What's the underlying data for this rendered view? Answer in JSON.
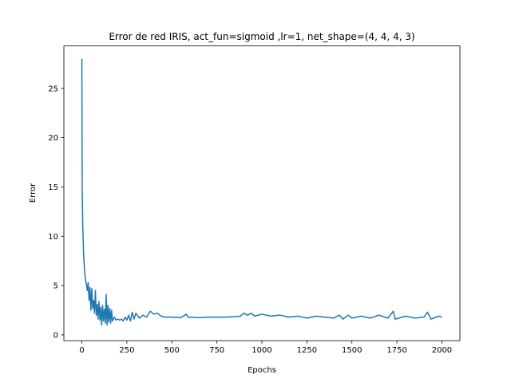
{
  "chart_data": {
    "type": "line",
    "title": "Error de red IRIS, act_fun=sigmoid ,lr=1, net_shape=(4, 4, 4, 3)",
    "xlabel": "Epochs",
    "ylabel": "Error",
    "x": [
      0,
      1,
      2,
      5,
      10,
      15,
      20,
      25,
      30,
      35,
      40,
      45,
      50,
      55,
      60,
      65,
      70,
      75,
      80,
      85,
      90,
      95,
      100,
      105,
      110,
      115,
      120,
      125,
      130,
      135,
      140,
      145,
      150,
      155,
      160,
      165,
      170,
      180,
      190,
      200,
      210,
      220,
      230,
      240,
      250,
      260,
      270,
      280,
      290,
      300,
      320,
      340,
      360,
      380,
      400,
      420,
      440,
      460,
      500,
      550,
      580,
      590,
      650,
      700,
      800,
      850,
      880,
      900,
      920,
      940,
      960,
      1000,
      1050,
      1100,
      1150,
      1200,
      1250,
      1300,
      1350,
      1400,
      1430,
      1450,
      1480,
      1500,
      1550,
      1600,
      1650,
      1700,
      1730,
      1740,
      1800,
      1850,
      1900,
      1920,
      1940,
      1980,
      2000
    ],
    "series": [
      {
        "name": "Error",
        "color": "#1f77b4",
        "values": [
          28,
          20,
          14.5,
          11,
          8,
          6.5,
          5.5,
          5.2,
          4.5,
          5.3,
          3.5,
          4.8,
          2.5,
          4.7,
          2.7,
          3.5,
          2.2,
          4.5,
          2.0,
          3.1,
          1.6,
          3.4,
          1.5,
          2.8,
          1.0,
          3.0,
          1.4,
          2.6,
          1.2,
          4.1,
          1.0,
          3.0,
          1.3,
          2.7,
          1.2,
          2.5,
          1.4,
          1.8,
          1.5,
          1.6,
          1.5,
          1.6,
          1.4,
          1.8,
          1.5,
          2.0,
          1.4,
          2.3,
          1.6,
          2.2,
          1.7,
          2.0,
          1.8,
          2.4,
          2.1,
          2.2,
          1.9,
          1.8,
          1.8,
          1.75,
          2.1,
          1.8,
          1.75,
          1.8,
          1.8,
          1.85,
          1.9,
          2.2,
          2.0,
          2.2,
          1.9,
          2.1,
          1.9,
          2.0,
          1.8,
          1.9,
          1.7,
          1.9,
          1.8,
          1.7,
          2.0,
          1.6,
          2.0,
          1.7,
          1.9,
          1.7,
          2.0,
          1.7,
          2.4,
          1.6,
          1.9,
          1.7,
          1.8,
          2.3,
          1.6,
          1.9,
          1.8
        ]
      }
    ],
    "xlim": [
      -100,
      2100
    ],
    "xticks": [
      0,
      250,
      500,
      750,
      1000,
      1250,
      1500,
      1750,
      2000
    ],
    "ylim": [
      -0.59,
      29.3
    ],
    "yticks": [
      0,
      5,
      10,
      15,
      20,
      25
    ]
  }
}
